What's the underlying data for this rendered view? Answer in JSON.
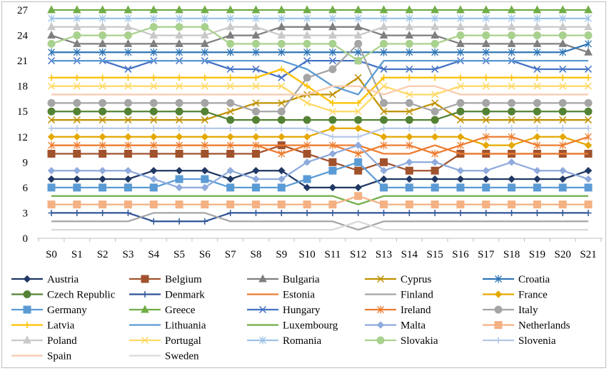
{
  "chart_data": {
    "type": "line",
    "x": [
      "S0",
      "S1",
      "S2",
      "S3",
      "S4",
      "S5",
      "S6",
      "S7",
      "S8",
      "S9",
      "S10",
      "S11",
      "S12",
      "S13",
      "S14",
      "S15",
      "S16",
      "S17",
      "S18",
      "S19",
      "S20",
      "S21"
    ],
    "ylim": [
      0,
      27
    ],
    "yticks": [
      0,
      3,
      6,
      9,
      12,
      15,
      18,
      21,
      24,
      27
    ],
    "grid": false,
    "legend_position": "bottom",
    "series": [
      {
        "name": "Austria",
        "color": "#203864",
        "marker": "diamond",
        "values": [
          7,
          7,
          7,
          7,
          8,
          8,
          8,
          7,
          8,
          8,
          6,
          6,
          6,
          7,
          7,
          7,
          7,
          7,
          7,
          7,
          7,
          8
        ]
      },
      {
        "name": "Belgium",
        "color": "#A0522D",
        "marker": "square",
        "values": [
          10,
          10,
          10,
          10,
          10,
          10,
          10,
          10,
          10,
          11,
          10,
          9,
          8,
          9,
          8,
          8,
          10,
          10,
          10,
          10,
          10,
          10
        ]
      },
      {
        "name": "Bulgaria",
        "color": "#7F7F7F",
        "marker": "triangle",
        "values": [
          24,
          23,
          23,
          23,
          23,
          23,
          23,
          24,
          24,
          25,
          25,
          25,
          25,
          24,
          24,
          24,
          23,
          23,
          23,
          23,
          23,
          22
        ]
      },
      {
        "name": "Cyprus",
        "color": "#BF9000",
        "marker": "x",
        "values": [
          14,
          14,
          14,
          14,
          14,
          14,
          14,
          15,
          16,
          16,
          17,
          17,
          19,
          15,
          15,
          16,
          14,
          14,
          14,
          14,
          14,
          14
        ]
      },
      {
        "name": "Croatia",
        "color": "#2E75B6",
        "marker": "star",
        "values": [
          22,
          22,
          22,
          22,
          22,
          22,
          22,
          22,
          22,
          22,
          22,
          22,
          22,
          22,
          22,
          22,
          22,
          22,
          22,
          22,
          22,
          23
        ]
      },
      {
        "name": "Czech Republic",
        "color": "#548235",
        "marker": "circle",
        "values": [
          15,
          15,
          15,
          15,
          15,
          15,
          15,
          14,
          14,
          14,
          14,
          14,
          14,
          14,
          14,
          14,
          15,
          15,
          15,
          15,
          15,
          15
        ]
      },
      {
        "name": "Denmark",
        "color": "#2F5597",
        "marker": "plus",
        "values": [
          3,
          3,
          3,
          3,
          2,
          2,
          2,
          3,
          3,
          3,
          3,
          3,
          3,
          3,
          3,
          3,
          3,
          3,
          3,
          3,
          3,
          3
        ]
      },
      {
        "name": "Estonia",
        "color": "#ED7D31",
        "marker": "none",
        "values": [
          11,
          11,
          11,
          11,
          11,
          11,
          11,
          11,
          11,
          11,
          11,
          11,
          11,
          10,
          10,
          11,
          10,
          10,
          10,
          10,
          10,
          10
        ]
      },
      {
        "name": "Finland",
        "color": "#A5A5A5",
        "marker": "none",
        "values": [
          2,
          2,
          2,
          2,
          3,
          3,
          3,
          2,
          2,
          2,
          2,
          2,
          1,
          2,
          2,
          2,
          2,
          2,
          2,
          2,
          2,
          2
        ]
      },
      {
        "name": "France",
        "color": "#E5A800",
        "marker": "diamond",
        "values": [
          12,
          12,
          12,
          12,
          12,
          12,
          12,
          12,
          12,
          12,
          12,
          13,
          13,
          12,
          12,
          12,
          12,
          11,
          11,
          12,
          12,
          11
        ]
      },
      {
        "name": "Germany",
        "color": "#5B9BD5",
        "marker": "square",
        "values": [
          6,
          6,
          6,
          6,
          6,
          7,
          7,
          6,
          6,
          6,
          7,
          8,
          9,
          6,
          6,
          6,
          6,
          6,
          6,
          6,
          6,
          6
        ]
      },
      {
        "name": "Greece",
        "color": "#70AD47",
        "marker": "triangle",
        "values": [
          27,
          27,
          27,
          27,
          27,
          27,
          27,
          27,
          27,
          27,
          27,
          27,
          27,
          27,
          27,
          27,
          27,
          27,
          27,
          27,
          27,
          27
        ]
      },
      {
        "name": "Hungary",
        "color": "#4472C4",
        "marker": "x",
        "values": [
          21,
          21,
          21,
          20,
          21,
          21,
          21,
          20,
          20,
          19,
          21,
          21,
          21,
          20,
          20,
          20,
          21,
          21,
          21,
          20,
          20,
          20
        ]
      },
      {
        "name": "Ireland",
        "color": "#ED7D31",
        "marker": "star",
        "values": [
          11,
          11,
          11,
          11,
          11,
          11,
          11,
          11,
          11,
          10,
          11,
          11,
          10,
          11,
          11,
          10,
          11,
          12,
          12,
          11,
          11,
          12
        ]
      },
      {
        "name": "Italy",
        "color": "#A5A5A5",
        "marker": "circle",
        "values": [
          16,
          16,
          16,
          16,
          16,
          16,
          16,
          16,
          15,
          15,
          19,
          20,
          23,
          16,
          16,
          15,
          16,
          16,
          16,
          16,
          16,
          16
        ]
      },
      {
        "name": "Latvia",
        "color": "#FFC000",
        "marker": "plus",
        "values": [
          19,
          19,
          19,
          19,
          19,
          19,
          19,
          19,
          19,
          20,
          18,
          16,
          16,
          19,
          19,
          19,
          19,
          19,
          19,
          19,
          19,
          19
        ]
      },
      {
        "name": "Lithuania",
        "color": "#5B9BD5",
        "marker": "none",
        "values": [
          21,
          21,
          21,
          21,
          21,
          21,
          21,
          21,
          21,
          21,
          20,
          18,
          17,
          21,
          21,
          21,
          21,
          21,
          21,
          21,
          21,
          21
        ]
      },
      {
        "name": "Luxembourg",
        "color": "#70AD47",
        "marker": "none",
        "values": [
          5,
          5,
          5,
          5,
          5,
          5,
          5,
          5,
          5,
          5,
          5,
          5,
          4,
          5,
          5,
          5,
          5,
          5,
          5,
          5,
          5,
          5
        ]
      },
      {
        "name": "Malta",
        "color": "#8FAADC",
        "marker": "diamond",
        "values": [
          8,
          8,
          8,
          8,
          7,
          6,
          6,
          8,
          7,
          7,
          9,
          10,
          11,
          8,
          9,
          9,
          8,
          8,
          9,
          8,
          8,
          7
        ]
      },
      {
        "name": "Netherlands",
        "color": "#F4B183",
        "marker": "square",
        "values": [
          4,
          4,
          4,
          4,
          4,
          4,
          4,
          4,
          4,
          4,
          4,
          4,
          5,
          4,
          4,
          4,
          4,
          4,
          4,
          4,
          4,
          4
        ]
      },
      {
        "name": "Poland",
        "color": "#C9C9C9",
        "marker": "triangle",
        "values": [
          25,
          25,
          25,
          25,
          24,
          24,
          24,
          25,
          25,
          24,
          24,
          24,
          24,
          25,
          25,
          25,
          25,
          25,
          25,
          25,
          25,
          25
        ]
      },
      {
        "name": "Portugal",
        "color": "#FFD966",
        "marker": "x",
        "values": [
          18,
          18,
          18,
          18,
          18,
          18,
          18,
          18,
          18,
          18,
          16,
          15,
          15,
          18,
          17,
          17,
          18,
          18,
          18,
          18,
          18,
          18
        ]
      },
      {
        "name": "Romania",
        "color": "#9DC3E6",
        "marker": "star",
        "values": [
          26,
          26,
          26,
          26,
          26,
          26,
          26,
          26,
          26,
          26,
          26,
          26,
          26,
          26,
          26,
          26,
          26,
          26,
          26,
          26,
          26,
          26
        ]
      },
      {
        "name": "Slovakia",
        "color": "#A9D18E",
        "marker": "circle",
        "values": [
          23,
          24,
          24,
          24,
          25,
          25,
          25,
          23,
          23,
          23,
          23,
          23,
          21,
          23,
          23,
          23,
          24,
          24,
          24,
          24,
          24,
          24
        ]
      },
      {
        "name": "Slovenia",
        "color": "#B4C7E7",
        "marker": "plus",
        "values": [
          13,
          13,
          13,
          13,
          13,
          13,
          13,
          13,
          13,
          13,
          13,
          12,
          12,
          13,
          13,
          13,
          13,
          13,
          13,
          13,
          13,
          13
        ]
      },
      {
        "name": "Spain",
        "color": "#F8CBAD",
        "marker": "none",
        "values": [
          17,
          17,
          17,
          17,
          17,
          17,
          17,
          17,
          17,
          17,
          17,
          18,
          18,
          17,
          18,
          18,
          17,
          17,
          17,
          17,
          17,
          17
        ]
      },
      {
        "name": "Sweden",
        "color": "#D9D9D9",
        "marker": "none",
        "values": [
          1,
          1,
          1,
          1,
          1,
          1,
          1,
          1,
          1,
          1,
          1,
          1,
          2,
          1,
          1,
          1,
          1,
          1,
          1,
          1,
          1,
          1
        ]
      }
    ]
  }
}
